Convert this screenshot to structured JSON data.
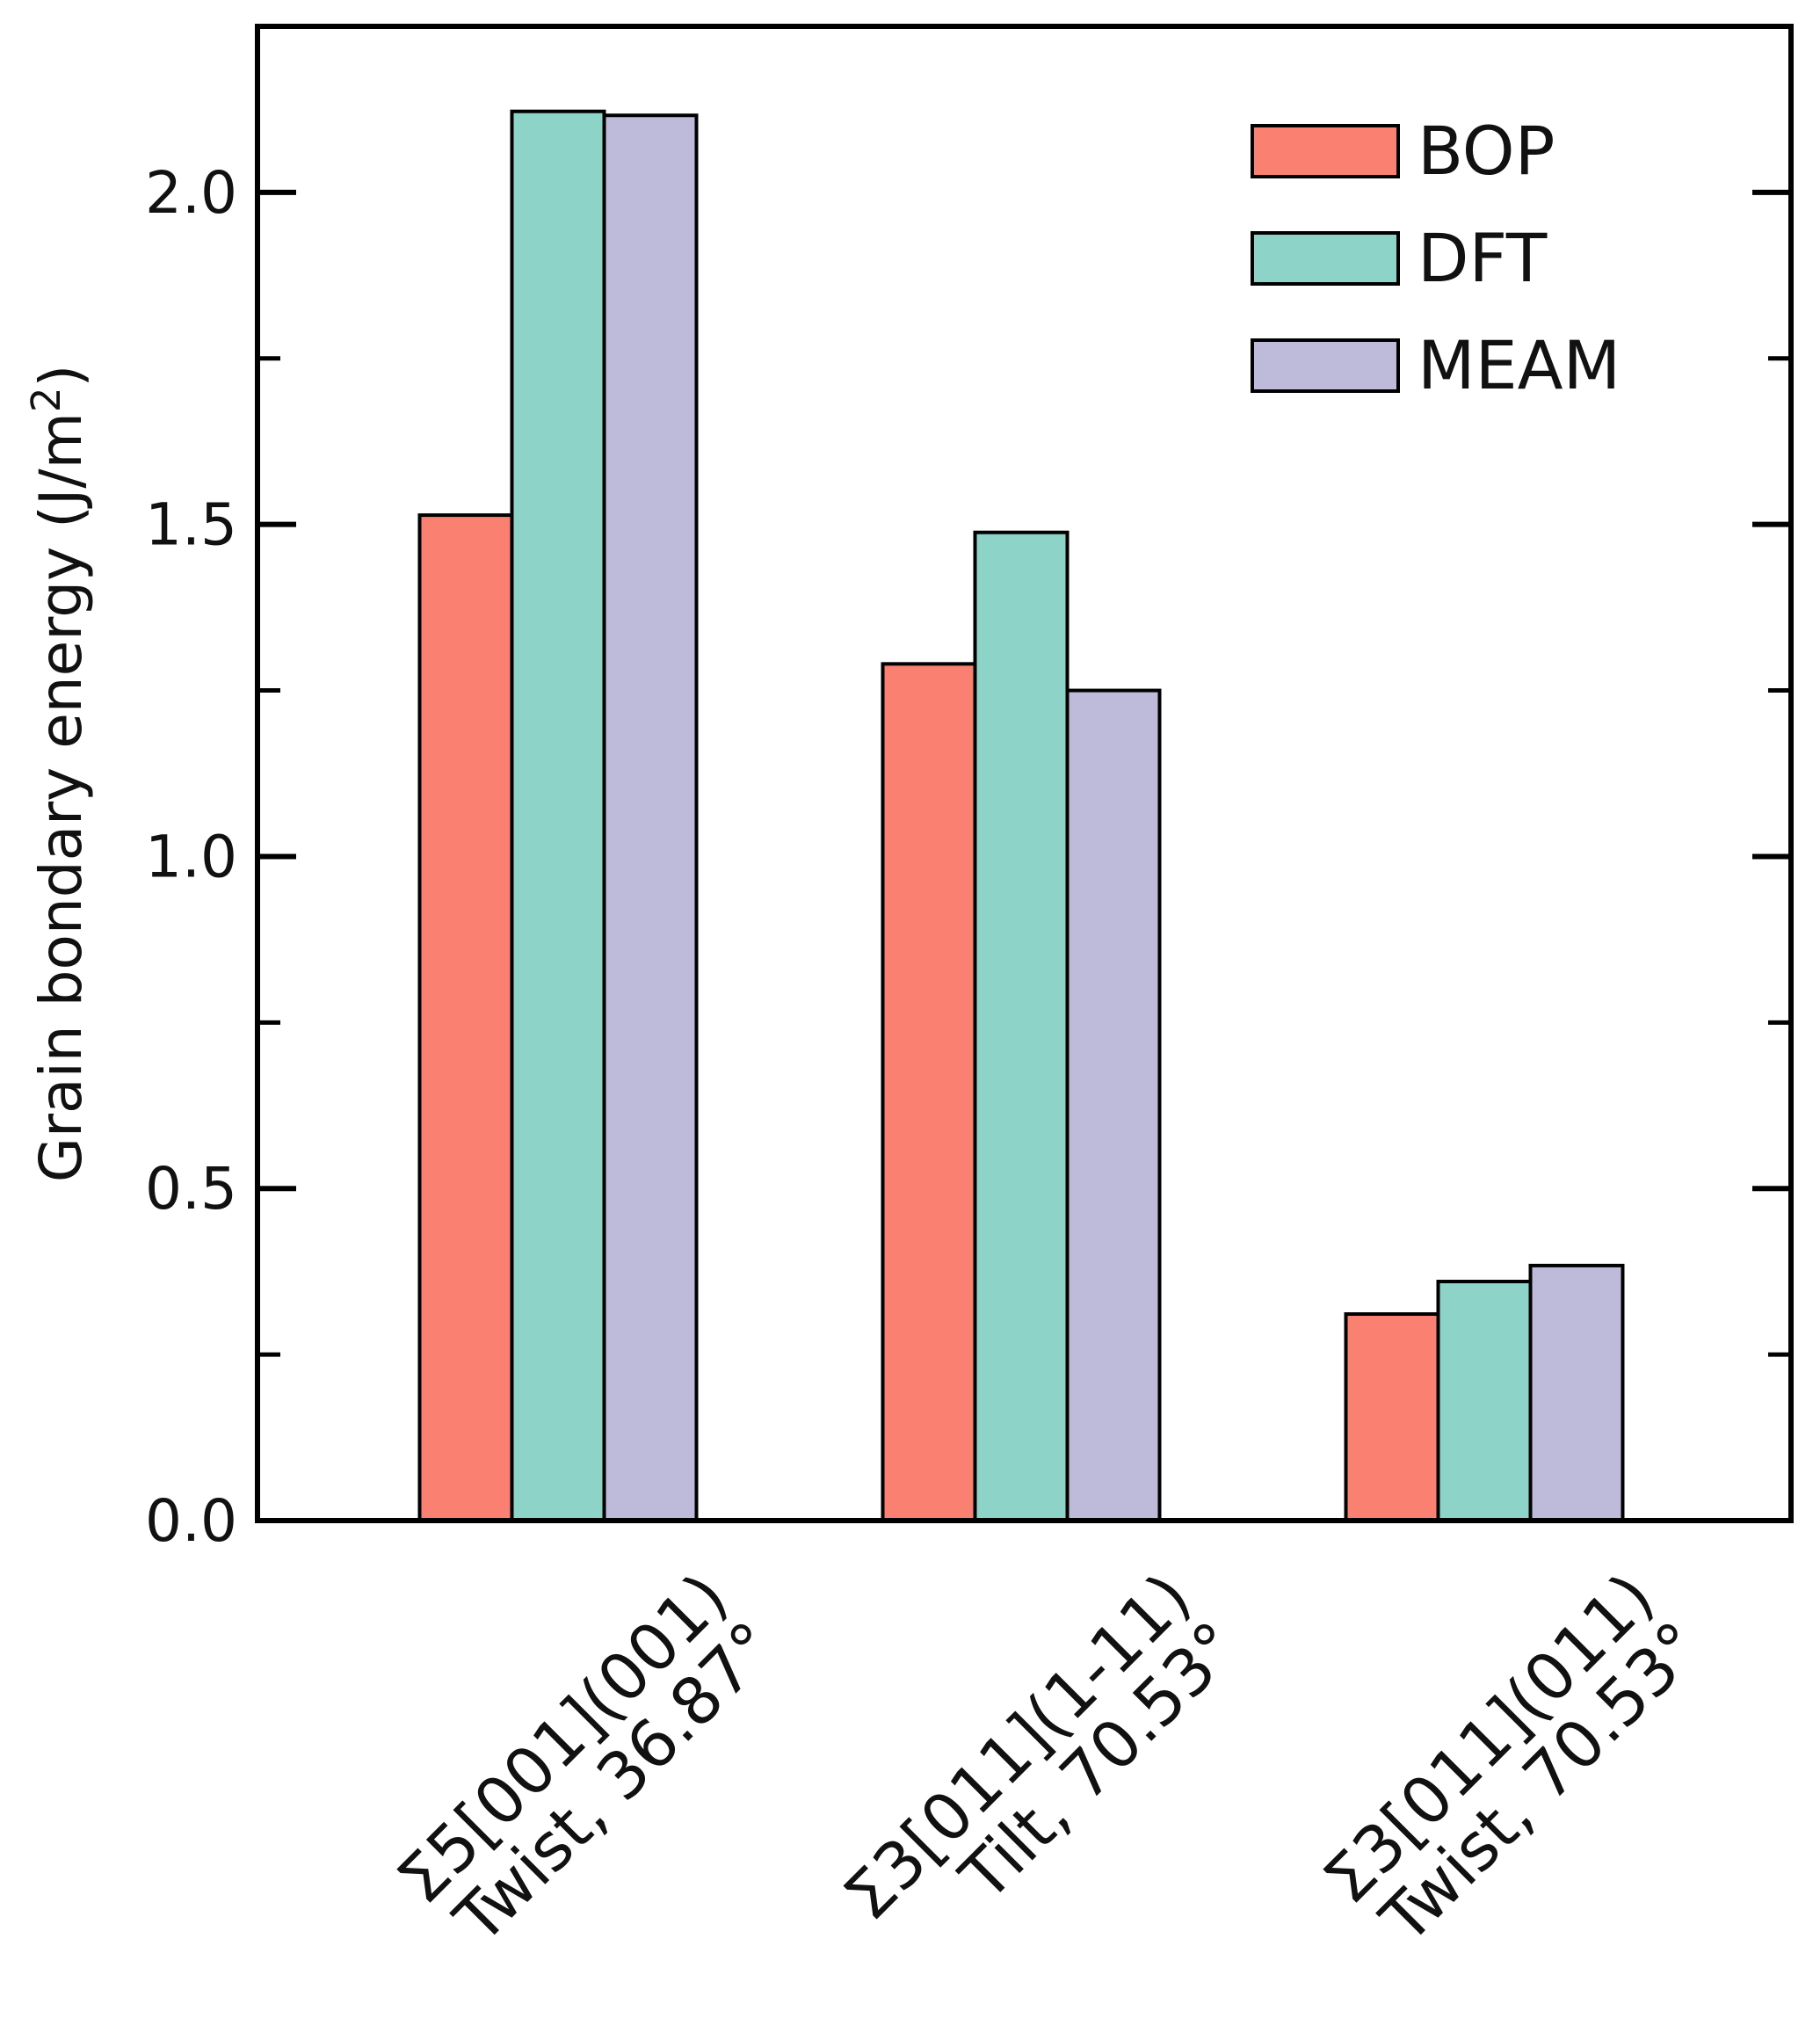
{
  "chart_data": {
    "type": "bar",
    "title": "",
    "xlabel": "",
    "ylabel": "Grain bondary energy (J/m",
    "ylabel_superscript": "2",
    "ylabel_close": ")",
    "ylim": [
      0,
      2.25
    ],
    "yticks": [
      0.0,
      0.5,
      1.0,
      1.5,
      2.0
    ],
    "ytick_labels": [
      "0.0",
      "0.5",
      "1.0",
      "1.5",
      "2.0"
    ],
    "minor_yticks": [
      0.25,
      0.75,
      1.25,
      1.75
    ],
    "categories": [
      {
        "line1": "Σ5[001](001)",
        "line2": "Twist, 36.87°"
      },
      {
        "line1": "Σ3[011](1-11)",
        "line2": "Tilt, 70.53°"
      },
      {
        "line1": "Σ3[011](011)",
        "line2": "Twist, 70.53°"
      }
    ],
    "series": [
      {
        "name": "BOP",
        "color": "#fa8072",
        "values": [
          1.514,
          1.29,
          0.311
        ]
      },
      {
        "name": "DFT",
        "color": "#8dd3c7",
        "values": [
          2.122,
          1.488,
          0.36
        ]
      },
      {
        "name": "MEAM",
        "color": "#bebada",
        "values": [
          2.116,
          1.25,
          0.384
        ]
      }
    ],
    "legend_position": "top-right",
    "grid": false
  }
}
